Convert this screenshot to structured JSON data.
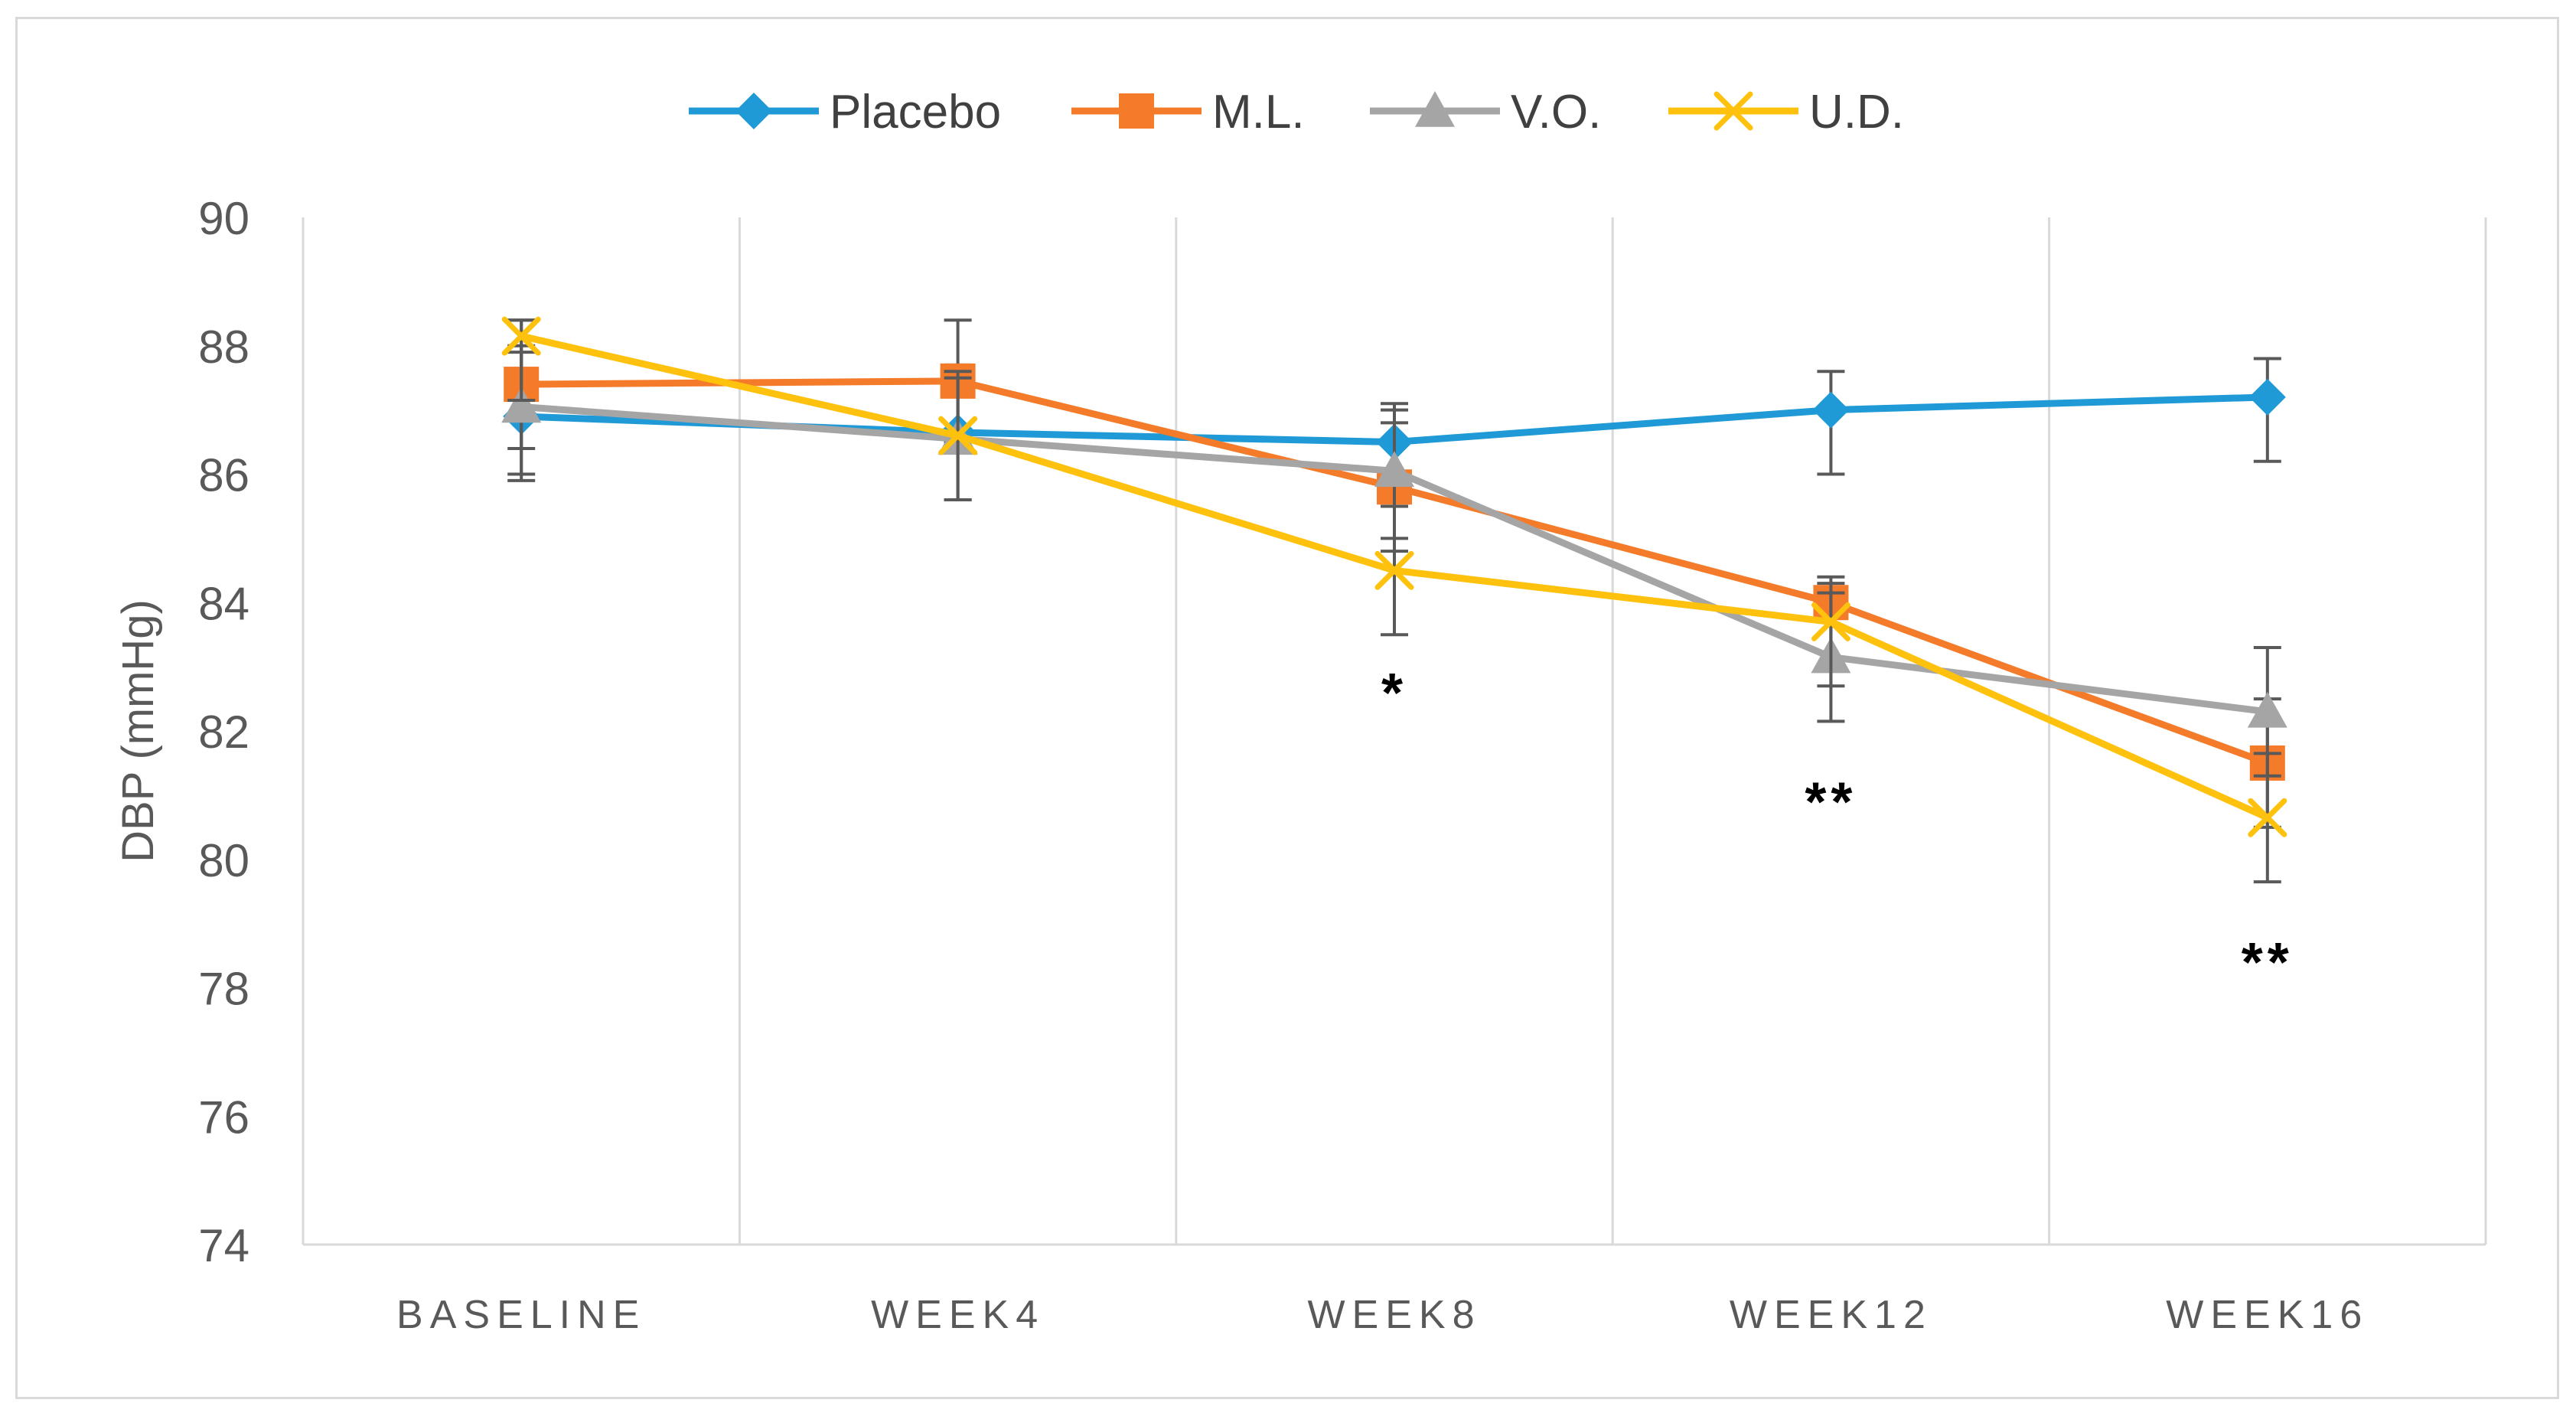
{
  "chart_data": {
    "type": "line",
    "title": "",
    "xlabel": "",
    "ylabel": "DBP (mmHg)",
    "ylim": [
      74,
      90
    ],
    "yticks": [
      74,
      76,
      78,
      80,
      82,
      84,
      86,
      88,
      90
    ],
    "ytick_labels": [
      "74",
      "76",
      "78",
      "80",
      "82",
      "84",
      "86",
      "88",
      "90"
    ],
    "categories": [
      "BASELINE",
      "WEEK4",
      "WEEK8",
      "WEEK12",
      "WEEK16"
    ],
    "grid": "vertical",
    "legend_position": "top-center",
    "series": [
      {
        "name": "Placebo",
        "color": "#1f9ad6",
        "marker": "diamond",
        "values": [
          86.9,
          86.65,
          86.5,
          87.0,
          87.2
        ],
        "error_low": [
          85.9,
          85.6,
          85.5,
          86.0,
          86.2
        ],
        "error_high": [
          87.9,
          87.7,
          87.1,
          87.6,
          87.8
        ]
      },
      {
        "name": "M.L.",
        "color": "#f47b2a",
        "marker": "square",
        "values": [
          87.4,
          87.45,
          85.8,
          84.0,
          81.5
        ],
        "error_low": [
          86.4,
          86.5,
          84.8,
          83.0,
          80.5
        ],
        "error_high": [
          88.4,
          88.4,
          86.8,
          84.4,
          82.5
        ]
      },
      {
        "name": "V.O.",
        "color": "#a5a5a5",
        "marker": "triangle",
        "values": [
          87.05,
          86.55,
          86.05,
          83.15,
          82.3
        ],
        "error_low": [
          86.0,
          85.6,
          85.0,
          82.15,
          81.3
        ],
        "error_high": [
          88.0,
          87.5,
          87.0,
          84.15,
          83.3
        ]
      },
      {
        "name": "U.D.",
        "color": "#fdc10e",
        "marker": "x",
        "values": [
          88.15,
          86.6,
          84.5,
          83.7,
          80.65
        ],
        "error_low": [
          87.15,
          85.6,
          83.5,
          82.7,
          79.65
        ],
        "error_high": [
          88.4,
          87.6,
          85.5,
          84.3,
          81.65
        ]
      }
    ],
    "annotations": [
      {
        "text": "*",
        "category": "WEEK8",
        "y": 82.3
      },
      {
        "text": "**",
        "category": "WEEK12",
        "y": 80.6
      },
      {
        "text": "**",
        "category": "WEEK16",
        "y": 78.1
      }
    ]
  }
}
